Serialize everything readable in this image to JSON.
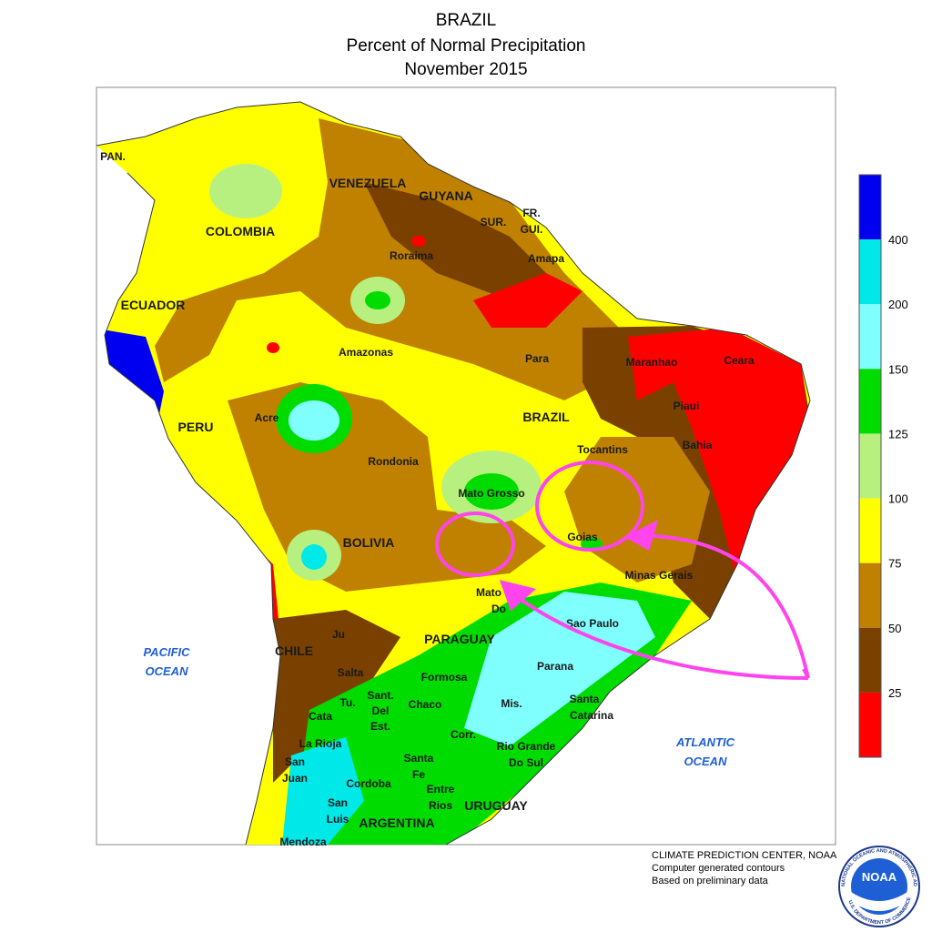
{
  "header": {
    "title": [
      "BRAZIL",
      "Percent of Normal Precipitation",
      "November 2015"
    ]
  },
  "map_labels": [
    [
      "PAN."
    ],
    [
      "COLOMBIA"
    ],
    [
      "VENEZUELA"
    ],
    [
      "GUYANA"
    ],
    [
      "SUR."
    ],
    [
      "FR.",
      "GUI."
    ],
    [
      "ECUADOR"
    ],
    [
      "PERU"
    ],
    [
      "Roraima"
    ],
    [
      "Amapa"
    ],
    [
      "Amazonas"
    ],
    [
      "Para"
    ],
    [
      "Maranhao"
    ],
    [
      "Ceara"
    ],
    [
      "Piaui"
    ],
    [
      "BRAZIL"
    ],
    [
      "Acre"
    ],
    [
      "Rondonia"
    ],
    [
      "Tocantins"
    ],
    [
      "Bahia"
    ],
    [
      "Mato Grosso"
    ],
    [
      "Goias"
    ],
    [
      "BOLIVIA"
    ],
    [
      "Minas Gerais"
    ],
    [
      "Mato",
      "Do"
    ],
    [
      "Sao Paulo"
    ],
    [
      "PARAGUAY"
    ],
    [
      "CHILE"
    ],
    [
      "Ju"
    ],
    [
      "Salta"
    ],
    [
      "Formosa"
    ],
    [
      "Parana"
    ],
    [
      "Santa",
      "Catarina"
    ],
    [
      "Tu."
    ],
    [
      "Sant.",
      "Del",
      "Est."
    ],
    [
      "Chaco"
    ],
    [
      "Mis."
    ],
    [
      "Cata"
    ],
    [
      "Corr."
    ],
    [
      "Rio Grande",
      "Do Sul"
    ],
    [
      "La Rioja"
    ],
    [
      "San",
      "Juan"
    ],
    [
      "Santa",
      "Fe"
    ],
    [
      "Cordoba"
    ],
    [
      "Entre",
      "Rios"
    ],
    [
      "URUGUAY"
    ],
    [
      "San",
      "Luis"
    ],
    [
      "ARGENTINA"
    ],
    [
      "Mendoza"
    ]
  ],
  "ocean_labels": [
    [
      "PACIFIC",
      "OCEAN"
    ],
    [
      "ATLANTIC",
      "OCEAN"
    ]
  ],
  "legend": {
    "colors": [
      "#0000f0",
      "#00e8e8",
      "#80ffff",
      "#00dc00",
      "#b8f080",
      "#ffff00",
      "#c08000",
      "#7a4000",
      "#ff0000"
    ],
    "ticks": [
      400,
      200,
      150,
      125,
      100,
      75,
      50,
      25
    ]
  },
  "credits": [
    "CLIMATE PREDICTION CENTER, NOAA",
    "Computer generated contours",
    "Based on preliminary data"
  ],
  "logo": {
    "name": "NOAA",
    "ring_top": "NATIONAL OCEANIC AND ATMOSPHERIC ADMINISTRATION",
    "ring_bottom": "U.S. DEPARTMENT OF COMMERCE"
  }
}
